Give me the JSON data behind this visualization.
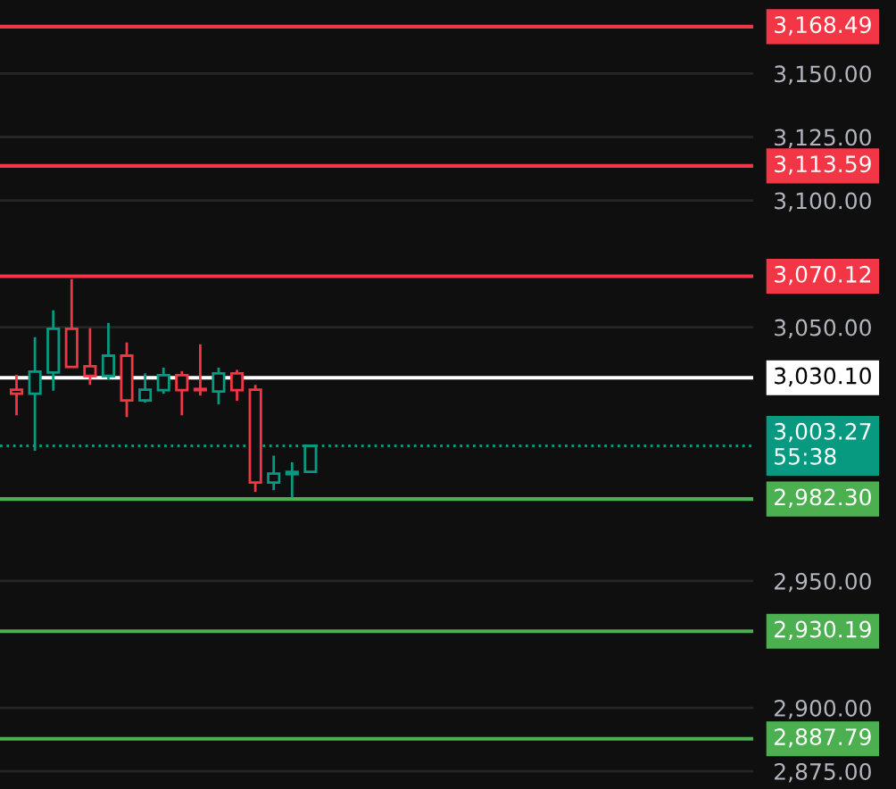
{
  "chart_data": {
    "type": "candlestick",
    "categories": [
      null,
      null,
      null,
      null,
      null,
      null,
      null,
      null,
      null,
      null,
      null,
      null,
      null,
      null,
      null,
      null,
      null,
      null,
      null,
      null,
      null,
      null,
      null,
      null,
      null,
      null,
      null,
      null,
      null,
      null,
      null,
      null,
      null,
      null,
      null,
      null,
      null,
      null,
      null,
      null,
      null
    ],
    "ohlc": [
      [
        3025.4,
        3031.3,
        3015.3,
        3023.8
      ],
      [
        3023.8,
        3046.1,
        3001.3,
        3032.5
      ],
      [
        3032.2,
        3056.7,
        3025.0,
        3049.4
      ],
      [
        3049.4,
        3069.0,
        3034.4,
        3034.4
      ],
      [
        3034.6,
        3049.6,
        3027.3,
        3030.8
      ],
      [
        3030.8,
        3051.7,
        3029.4,
        3038.8
      ],
      [
        3038.8,
        3044.0,
        3014.6,
        3021.2
      ],
      [
        3021.2,
        3031.8,
        3020.3,
        3025.4
      ],
      [
        3025.2,
        3034.1,
        3023.8,
        3031.1
      ],
      [
        3031.1,
        3032.7,
        3015.3,
        3025.2
      ],
      [
        3025.7,
        3043.3,
        3023.1,
        3025.2
      ],
      [
        3024.7,
        3034.1,
        3019.6,
        3031.8
      ],
      [
        3031.8,
        3033.2,
        3021.0,
        3025.2
      ],
      [
        3025.4,
        3027.3,
        2985.1,
        2988.8
      ],
      [
        2988.8,
        2999.4,
        2985.8,
        2992.3
      ],
      [
        2992.1,
        2996.8,
        2982.9,
        2993.0
      ],
      [
        2993.0,
        3003.3,
        2993.0,
        3003.27
      ],
      null,
      null,
      null,
      null,
      null,
      null,
      null,
      null,
      null,
      null,
      null,
      null,
      null,
      null,
      null,
      null,
      null,
      null,
      null,
      null,
      null,
      null,
      null,
      null
    ],
    "colors": [
      "#f23645",
      "#089981",
      "#089981",
      "#f23645",
      "#f23645",
      "#089981",
      "#f23645",
      "#089981",
      "#089981",
      "#f23645",
      "#f23645",
      "#089981",
      "#f23645",
      "#f23645",
      "#089981",
      "#089981",
      "#089981",
      null,
      null,
      null,
      null,
      null,
      null,
      null,
      null,
      null,
      null,
      null,
      null,
      null,
      null,
      null,
      null,
      null,
      null,
      null,
      null,
      null,
      null,
      null,
      null
    ],
    "ylim": [
      2868,
      3179
    ],
    "yticks": [
      {
        "value": 2875,
        "label": "2,875.00"
      },
      {
        "value": 2900,
        "label": "2,900.00"
      },
      {
        "value": 2950,
        "label": "2,950.00"
      },
      {
        "value": 3050,
        "label": "3,050.00"
      },
      {
        "value": 3100,
        "label": "3,100.00"
      },
      {
        "value": 3125,
        "label": "3,125.00"
      },
      {
        "value": 3150,
        "label": "3,150.00"
      }
    ],
    "grid": "y",
    "ref_lines": [
      {
        "axis": "y",
        "value": 3168.49,
        "label": "3,168.49",
        "color": "#f23645",
        "line_style": "solid"
      },
      {
        "axis": "y",
        "value": 3113.59,
        "label": "3,113.59",
        "color": "#f23645",
        "line_style": "solid"
      },
      {
        "axis": "y",
        "value": 3070.12,
        "label": "3,070.12",
        "color": "#f23645",
        "line_style": "solid"
      },
      {
        "axis": "y",
        "value": 3030.1,
        "label": "3,030.10",
        "color": "#ffffff",
        "line_style": "solid"
      },
      {
        "axis": "y",
        "value": 3003.27,
        "label": "3,003.27\n55:38",
        "color": "#089981",
        "line_style": "dotted"
      },
      {
        "axis": "y",
        "value": 2982.3,
        "label": "2,982.30",
        "color": "#4caf50",
        "line_style": "solid"
      },
      {
        "axis": "y",
        "value": 2930.19,
        "label": "2,930.19",
        "color": "#4caf50",
        "line_style": "solid"
      },
      {
        "axis": "y",
        "value": 2887.79,
        "label": "2,887.79",
        "color": "#4caf50",
        "line_style": "solid"
      }
    ]
  }
}
